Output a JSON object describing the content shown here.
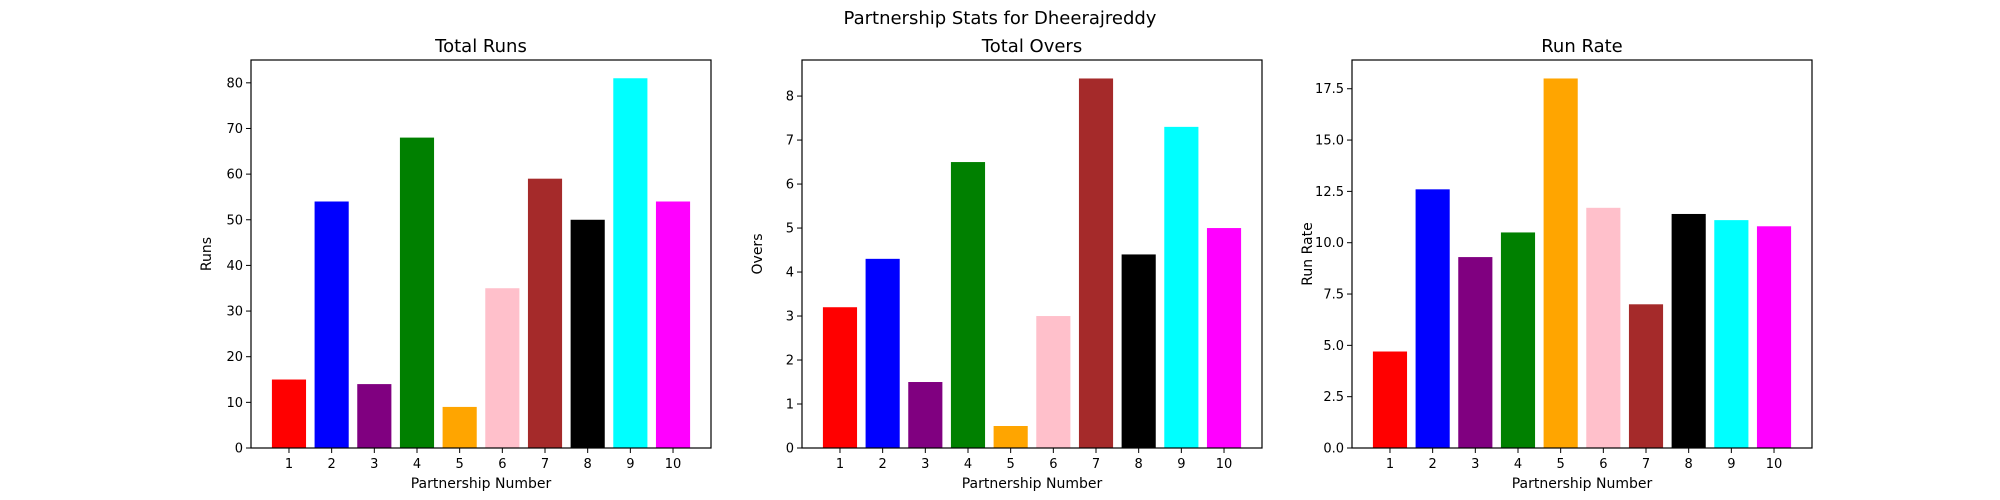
{
  "figure": {
    "suptitle": "Partnership Stats for Dheerajreddy"
  },
  "chart_data": [
    {
      "type": "bar",
      "title": "Total Runs",
      "xlabel": "Partnership Number",
      "ylabel": "Runs",
      "categories": [
        "1",
        "2",
        "3",
        "4",
        "5",
        "6",
        "7",
        "8",
        "9",
        "10"
      ],
      "values": [
        15,
        54,
        14,
        68,
        9,
        35,
        59,
        50,
        81,
        54
      ],
      "colors": [
        "#ff0000",
        "#0000ff",
        "#800080",
        "#008000",
        "#ffa500",
        "#ffc0cb",
        "#a52a2a",
        "#000000",
        "#00ffff",
        "#ff00ff"
      ],
      "ylim": [
        0,
        85
      ],
      "yticks": [
        0,
        10,
        20,
        30,
        40,
        50,
        60,
        70,
        80
      ],
      "ytick_labels": [
        "0",
        "10",
        "20",
        "30",
        "40",
        "50",
        "60",
        "70",
        "80"
      ],
      "grid": false,
      "legend": "none"
    },
    {
      "type": "bar",
      "title": "Total Overs",
      "xlabel": "Partnership Number",
      "ylabel": "Overs",
      "categories": [
        "1",
        "2",
        "3",
        "4",
        "5",
        "6",
        "7",
        "8",
        "9",
        "10"
      ],
      "values": [
        3.2,
        4.3,
        1.5,
        6.5,
        0.5,
        3.0,
        8.4,
        4.4,
        7.3,
        5.0
      ],
      "colors": [
        "#ff0000",
        "#0000ff",
        "#800080",
        "#008000",
        "#ffa500",
        "#ffc0cb",
        "#a52a2a",
        "#000000",
        "#00ffff",
        "#ff00ff"
      ],
      "ylim": [
        0,
        8.82
      ],
      "yticks": [
        0,
        1,
        2,
        3,
        4,
        5,
        6,
        7,
        8
      ],
      "ytick_labels": [
        "0",
        "1",
        "2",
        "3",
        "4",
        "5",
        "6",
        "7",
        "8"
      ],
      "grid": false,
      "legend": "none"
    },
    {
      "type": "bar",
      "title": "Run Rate",
      "xlabel": "Partnership Number",
      "ylabel": "Run Rate",
      "categories": [
        "1",
        "2",
        "3",
        "4",
        "5",
        "6",
        "7",
        "8",
        "9",
        "10"
      ],
      "values": [
        4.7,
        12.6,
        9.3,
        10.5,
        18.0,
        11.7,
        7.0,
        11.4,
        11.1,
        10.8
      ],
      "colors": [
        "#ff0000",
        "#0000ff",
        "#800080",
        "#008000",
        "#ffa500",
        "#ffc0cb",
        "#a52a2a",
        "#000000",
        "#00ffff",
        "#ff00ff"
      ],
      "ylim": [
        0,
        18.9
      ],
      "yticks": [
        0,
        2.5,
        5,
        7.5,
        10,
        12.5,
        15,
        17.5
      ],
      "ytick_labels": [
        "0.0",
        "2.5",
        "5.0",
        "7.5",
        "10.0",
        "12.5",
        "15.0",
        "17.5"
      ],
      "grid": false,
      "legend": "none"
    }
  ]
}
